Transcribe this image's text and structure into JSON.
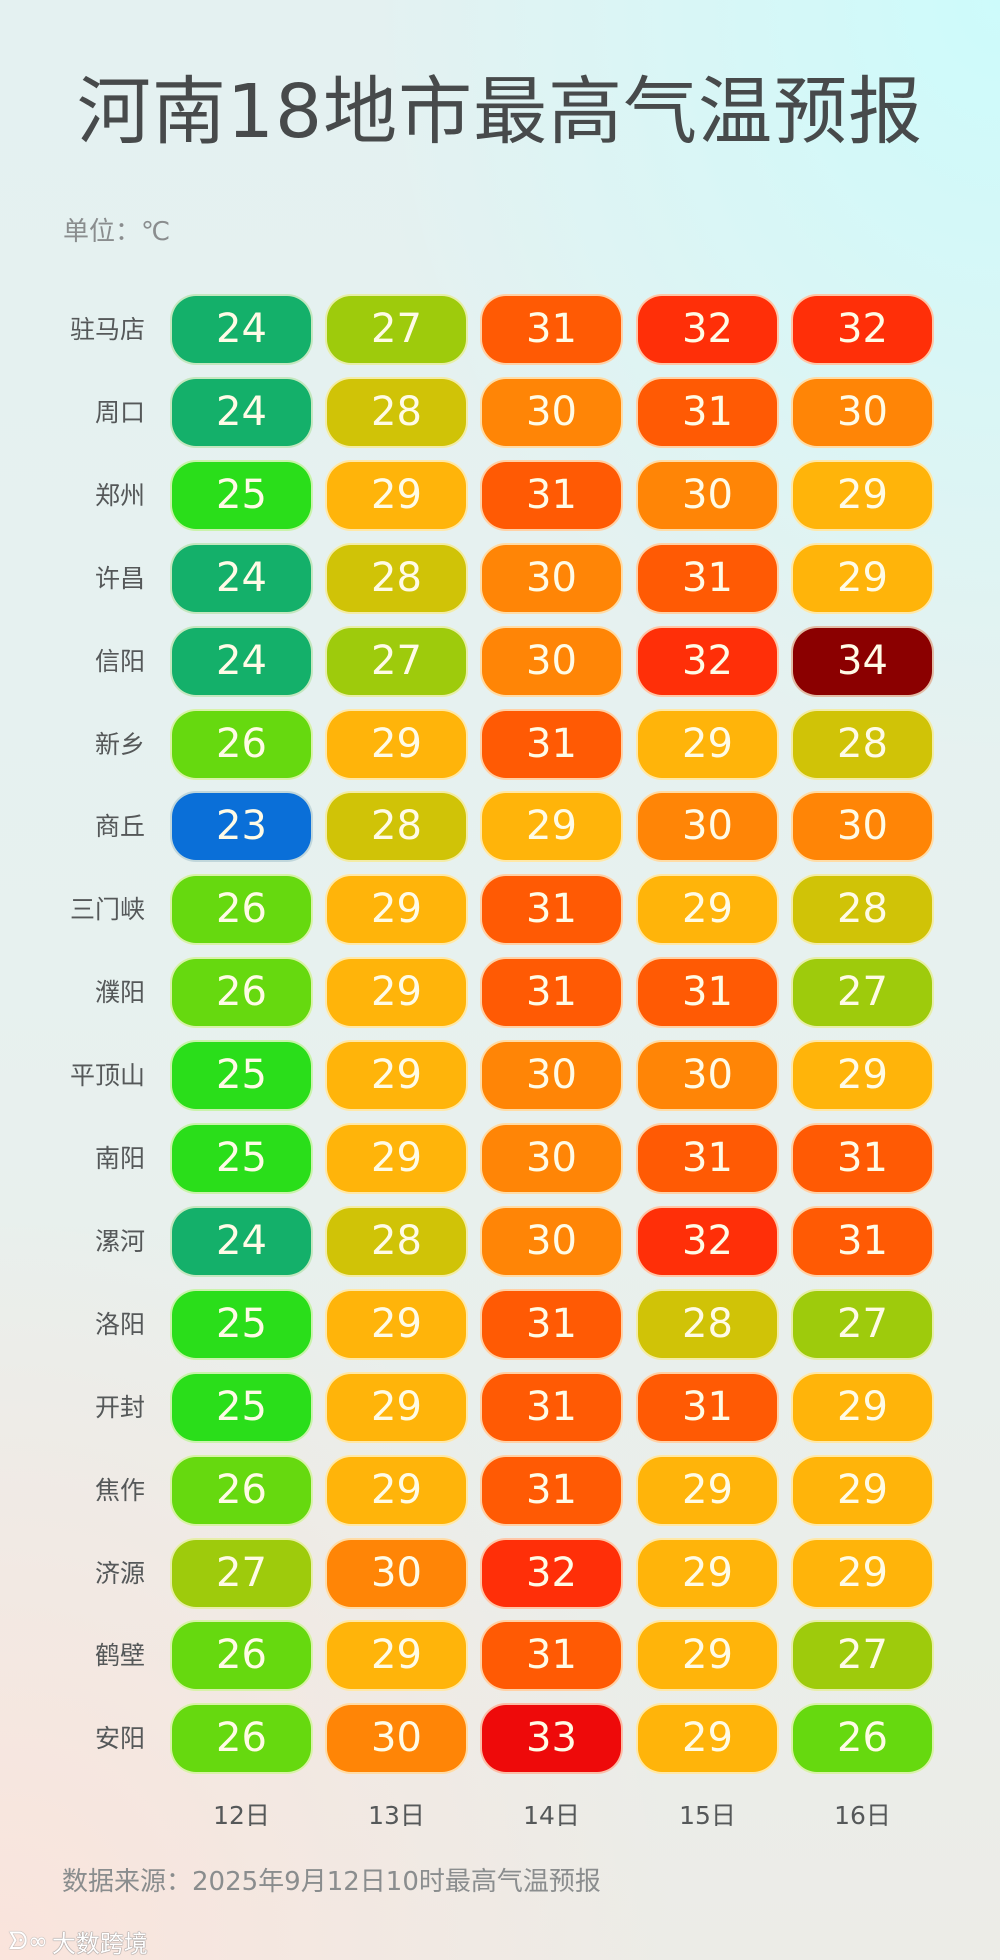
{
  "header": {
    "title": "河南18地市最高气温预报",
    "unit": "单位：℃"
  },
  "footer": {
    "source": "数据来源：2025年9月12日10时最高气温预报",
    "watermark_logo": "ᗦ∞",
    "watermark_text": "大数跨境"
  },
  "colors": {
    "23": "#0a6fd8",
    "24": "#14b06a",
    "25": "#2ade1a",
    "26": "#66d90f",
    "27": "#9ecb0c",
    "28": "#d0c307",
    "29": "#ffb40a",
    "30": "#ff8506",
    "31": "#ff5a04",
    "32": "#ff2f08",
    "33": "#ee0a0a",
    "34": "#8b0000"
  },
  "chart_data": {
    "type": "table",
    "title": "河南18地市最高气温预报",
    "unit": "℃",
    "categories": [
      "12日",
      "13日",
      "14日",
      "15日",
      "16日"
    ],
    "rows": [
      {
        "city": "驻马店",
        "values": [
          24,
          27,
          31,
          32,
          32
        ]
      },
      {
        "city": "周口",
        "values": [
          24,
          28,
          30,
          31,
          30
        ]
      },
      {
        "city": "郑州",
        "values": [
          25,
          29,
          31,
          30,
          29
        ]
      },
      {
        "city": "许昌",
        "values": [
          24,
          28,
          30,
          31,
          29
        ]
      },
      {
        "city": "信阳",
        "values": [
          24,
          27,
          30,
          32,
          34
        ]
      },
      {
        "city": "新乡",
        "values": [
          26,
          29,
          31,
          29,
          28
        ]
      },
      {
        "city": "商丘",
        "values": [
          23,
          28,
          29,
          30,
          30
        ]
      },
      {
        "city": "三门峡",
        "values": [
          26,
          29,
          31,
          29,
          28
        ]
      },
      {
        "city": "濮阳",
        "values": [
          26,
          29,
          31,
          31,
          27
        ]
      },
      {
        "city": "平顶山",
        "values": [
          25,
          29,
          30,
          30,
          29
        ]
      },
      {
        "city": "南阳",
        "values": [
          25,
          29,
          30,
          31,
          31
        ]
      },
      {
        "city": "漯河",
        "values": [
          24,
          28,
          30,
          32,
          31
        ]
      },
      {
        "city": "洛阳",
        "values": [
          25,
          29,
          31,
          28,
          27
        ]
      },
      {
        "city": "开封",
        "values": [
          25,
          29,
          31,
          31,
          29
        ]
      },
      {
        "city": "焦作",
        "values": [
          26,
          29,
          31,
          29,
          29
        ]
      },
      {
        "city": "济源",
        "values": [
          27,
          30,
          32,
          29,
          29
        ]
      },
      {
        "city": "鹤壁",
        "values": [
          26,
          29,
          31,
          29,
          27
        ]
      },
      {
        "city": "安阳",
        "values": [
          26,
          30,
          33,
          29,
          26
        ]
      }
    ],
    "source": "2025年9月12日10时最高气温预报"
  }
}
